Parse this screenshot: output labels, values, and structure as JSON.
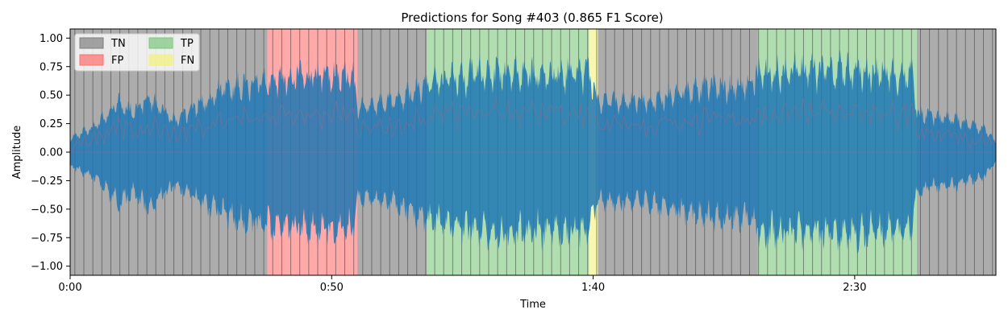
{
  "chart_data": {
    "type": "area",
    "title": "Predictions for Song #403 (0.865 F1 Score)",
    "xlabel": "Time",
    "ylabel": "Amplitude",
    "xlim_seconds": [
      0,
      177
    ],
    "ylim": [
      -1.08,
      1.08
    ],
    "x_ticks": [
      {
        "value": 0,
        "label": "0:00"
      },
      {
        "value": 50,
        "label": "0:50"
      },
      {
        "value": 100,
        "label": "1:40"
      },
      {
        "value": 150,
        "label": "2:30"
      }
    ],
    "y_ticks": [
      {
        "value": 1.0,
        "label": "1.00"
      },
      {
        "value": 0.75,
        "label": "0.75"
      },
      {
        "value": 0.5,
        "label": "0.50"
      },
      {
        "value": 0.25,
        "label": "0.25"
      },
      {
        "value": 0.0,
        "label": "0.00"
      },
      {
        "value": -0.25,
        "label": "−0.25"
      },
      {
        "value": -0.5,
        "label": "−0.50"
      },
      {
        "value": -0.75,
        "label": "−0.75"
      },
      {
        "value": -1.0,
        "label": "−1.00"
      }
    ],
    "legend": {
      "placement": "top-left",
      "entries": [
        {
          "label": "TN",
          "color": "#808080"
        },
        {
          "label": "FP",
          "color": "#ff6f6f"
        },
        {
          "label": "TP",
          "color": "#7cc87c"
        },
        {
          "label": "FN",
          "color": "#f2f27a"
        }
      ]
    },
    "segments": [
      {
        "class": "TN",
        "start": 0,
        "end": 37.7
      },
      {
        "class": "FP",
        "start": 37.7,
        "end": 54.9
      },
      {
        "class": "TN",
        "start": 54.9,
        "end": 68.2
      },
      {
        "class": "TP",
        "start": 68.2,
        "end": 99.2
      },
      {
        "class": "FN",
        "start": 99.2,
        "end": 100.9
      },
      {
        "class": "TN",
        "start": 100.9,
        "end": 131.5
      },
      {
        "class": "TP",
        "start": 131.5,
        "end": 161.9
      },
      {
        "class": "TN",
        "start": 161.9,
        "end": 177
      }
    ],
    "beat_interval_seconds": 1.72,
    "envelope": [
      {
        "t": 0,
        "amp": 0.15
      },
      {
        "t": 5,
        "amp": 0.3
      },
      {
        "t": 9,
        "amp": 0.55
      },
      {
        "t": 12,
        "amp": 0.45
      },
      {
        "t": 15,
        "amp": 0.6
      },
      {
        "t": 20,
        "amp": 0.35
      },
      {
        "t": 25,
        "amp": 0.55
      },
      {
        "t": 30,
        "amp": 0.7
      },
      {
        "t": 37,
        "amp": 0.8
      },
      {
        "t": 45,
        "amp": 0.85
      },
      {
        "t": 54,
        "amp": 0.85
      },
      {
        "t": 55,
        "amp": 0.5
      },
      {
        "t": 62,
        "amp": 0.55
      },
      {
        "t": 68,
        "amp": 0.75
      },
      {
        "t": 80,
        "amp": 0.88
      },
      {
        "t": 99,
        "amp": 0.88
      },
      {
        "t": 101,
        "amp": 0.55
      },
      {
        "t": 110,
        "amp": 0.55
      },
      {
        "t": 120,
        "amp": 0.7
      },
      {
        "t": 130,
        "amp": 0.75
      },
      {
        "t": 132,
        "amp": 0.88
      },
      {
        "t": 145,
        "amp": 0.92
      },
      {
        "t": 161,
        "amp": 0.85
      },
      {
        "t": 162,
        "amp": 0.42
      },
      {
        "t": 170,
        "amp": 0.35
      },
      {
        "t": 175,
        "amp": 0.25
      },
      {
        "t": 177,
        "amp": 0.1
      }
    ],
    "colors": {
      "waveform": "#1f77b4",
      "waveform_shadow": "#8c6d8c",
      "TN": "#808080",
      "FP": "#ff6f6f",
      "TP": "#7cc87c",
      "FN": "#f2f27a"
    }
  }
}
